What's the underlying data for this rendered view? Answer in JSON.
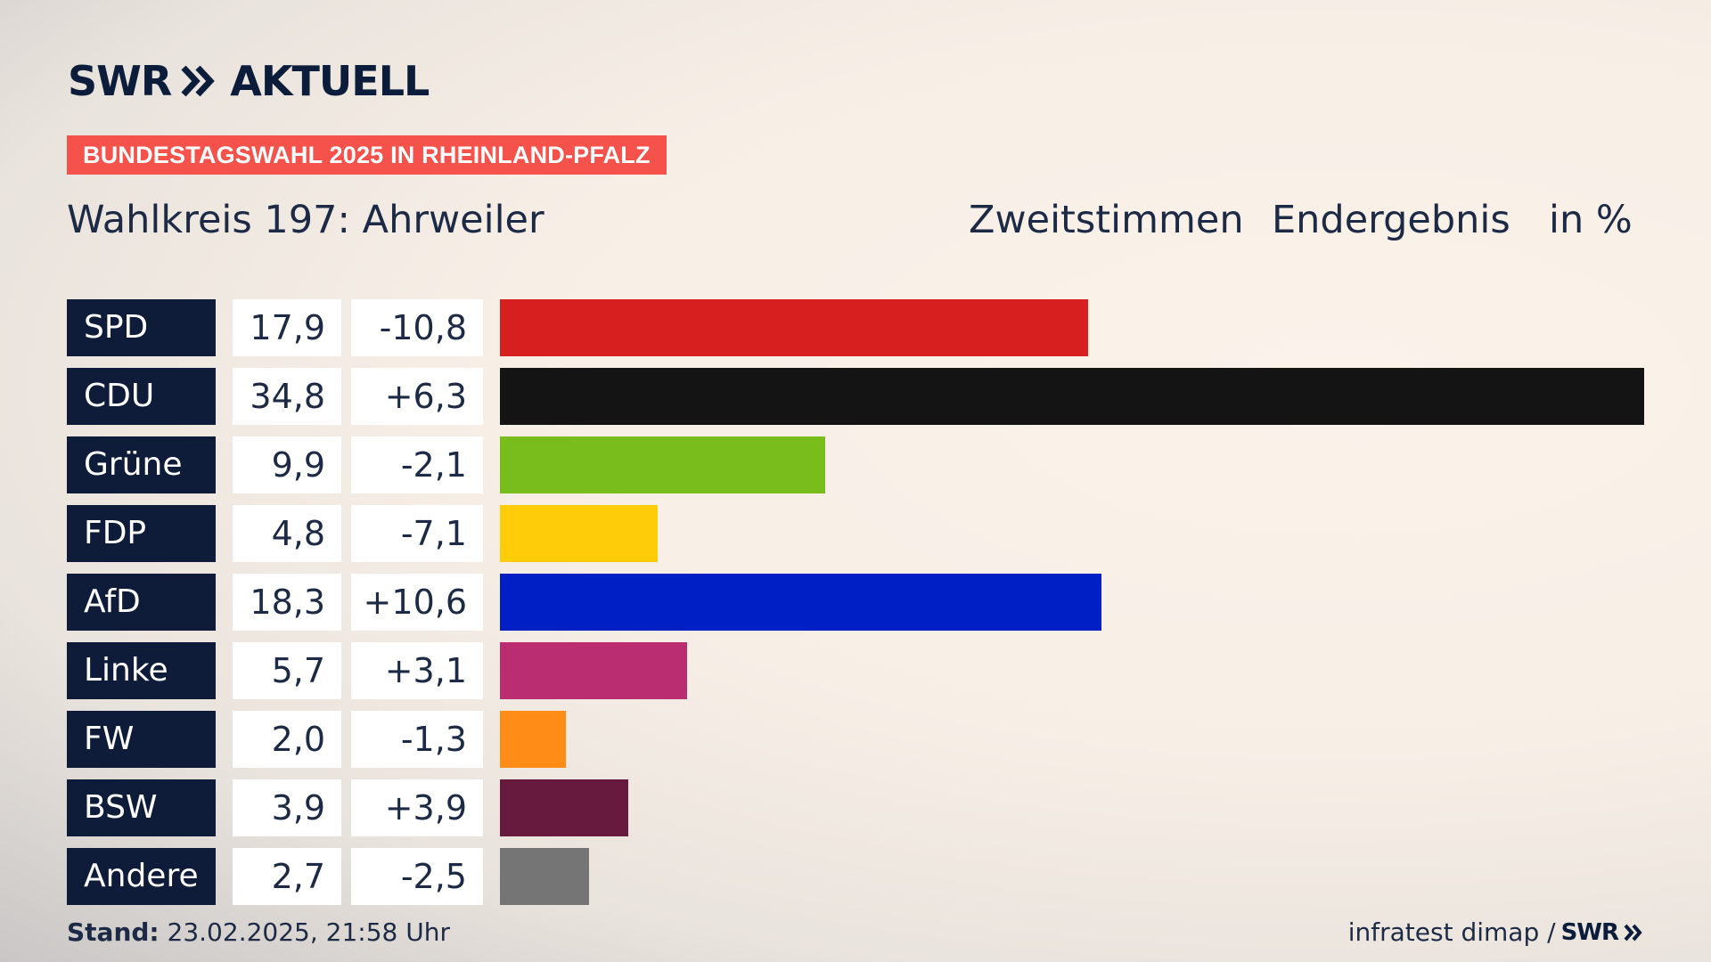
{
  "brand": {
    "swr": "SWR",
    "aktuell": "AKTUELL"
  },
  "tag": "BUNDESTAGSWAHL 2025 IN RHEINLAND-PFALZ",
  "title": "Wahlkreis 197: Ahrweiler",
  "header": {
    "vote_type": "Zweitstimmen",
    "status": "Endergebnis",
    "unit": "in %"
  },
  "chart_data": {
    "type": "bar",
    "orientation": "horizontal",
    "categories": [
      "SPD",
      "CDU",
      "Grüne",
      "FDP",
      "AfD",
      "Linke",
      "FW",
      "BSW",
      "Andere"
    ],
    "values": [
      17.9,
      34.8,
      9.9,
      4.8,
      18.3,
      5.7,
      2.0,
      3.9,
      2.7
    ],
    "changes": [
      -10.8,
      6.3,
      -2.1,
      -7.1,
      10.6,
      3.1,
      -1.3,
      3.9,
      -2.5
    ],
    "value_labels": [
      "17,9",
      "34,8",
      "9,9",
      "4,8",
      "18,3",
      "5,7",
      "2,0",
      "3,9",
      "2,7"
    ],
    "change_labels": [
      "-10,8",
      "+6,3",
      "-2,1",
      "-7,1",
      "+10,6",
      "+3,1",
      "-1,3",
      "+3,9",
      "-2,5"
    ],
    "colors": [
      "#d71f1f",
      "#141414",
      "#78bd1b",
      "#ffcc0a",
      "#0020c5",
      "#bb2d71",
      "#ff8c17",
      "#671a3e",
      "#757575"
    ],
    "xlim": [
      0,
      34.8
    ]
  },
  "footer": {
    "stand_label": "Stand:",
    "stand_value": "23.02.2025, 21:58 Uhr",
    "source": "infratest dimap /",
    "source_brand": "SWR"
  }
}
